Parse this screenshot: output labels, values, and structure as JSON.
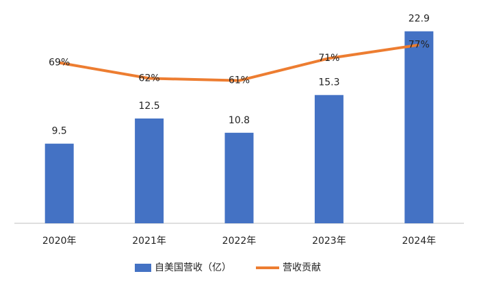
{
  "chart_data": {
    "type": "bar-line",
    "categories": [
      "2020年",
      "2021年",
      "2022年",
      "2023年",
      "2024年"
    ],
    "series": [
      {
        "name": "自美国营收（亿）",
        "type": "bar",
        "color": "#4472c4",
        "values": [
          9.5,
          12.5,
          10.8,
          15.3,
          22.9
        ]
      },
      {
        "name": "营收贡献",
        "type": "line",
        "axis": "y2",
        "color": "#ed7d31",
        "values": [
          69,
          62,
          61,
          71,
          77
        ],
        "value_labels": [
          "69%",
          "62%",
          "61%",
          "71%",
          "77%"
        ]
      }
    ],
    "ylim": [
      0,
      25
    ],
    "y2lim": [
      -3,
      91
    ],
    "legend": "bottom"
  }
}
